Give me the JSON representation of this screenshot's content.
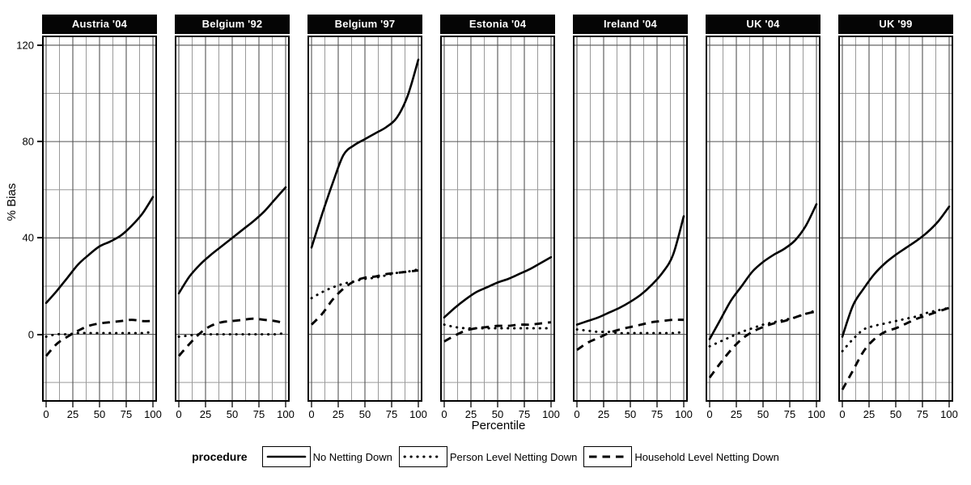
{
  "chart_data": {
    "type": "line",
    "xlabel": "Percentile",
    "ylabel": "% Bias",
    "x_ticks": [
      "0",
      "25",
      "50",
      "75",
      "100"
    ],
    "x_tick_values": [
      0,
      25,
      50,
      75,
      100
    ],
    "x_minor_values": [
      12.5,
      37.5,
      62.5,
      87.5
    ],
    "y_ticks": [
      "120",
      "80",
      "40",
      "0"
    ],
    "y_tick_values": [
      120,
      80,
      40,
      0
    ],
    "y_minor_values": [
      -20,
      20,
      60,
      100
    ],
    "xlim": [
      0,
      100
    ],
    "ylim": [
      -28,
      124
    ],
    "grid": "on",
    "line_color": "#000000",
    "grid_major_color": "#545454",
    "grid_minor_color": "#9a9a9a",
    "strip_bg_color": "#050505",
    "strip_text_color": "#ffffff",
    "legend": {
      "title": "procedure",
      "position": "bottom",
      "entries": [
        {
          "style": "solid",
          "label": "No Netting Down"
        },
        {
          "style": "dotted",
          "label": "Person Level Netting Down"
        },
        {
          "style": "dashed",
          "label": "Household Level Netting Down"
        }
      ]
    },
    "x": [
      0,
      10,
      20,
      30,
      40,
      50,
      60,
      70,
      80,
      90,
      100
    ],
    "facets": [
      {
        "title": "Austria '04",
        "series": {
          "solid": [
            13,
            18,
            23.5,
            29,
            33,
            36.5,
            38.5,
            41,
            45,
            50,
            57
          ],
          "dotted": [
            -1,
            0,
            0,
            0.5,
            0.5,
            0.5,
            0.5,
            0.5,
            0.5,
            0.5,
            1
          ],
          "dashed": [
            -9,
            -4,
            -1,
            1.5,
            3.5,
            4.5,
            5,
            5.5,
            6,
            5.5,
            5.5
          ]
        }
      },
      {
        "title": "Belgium '92",
        "series": {
          "solid": [
            17,
            24,
            29,
            33,
            36.5,
            40,
            43.5,
            47,
            51,
            56,
            61
          ],
          "dotted": [
            -1,
            -0.5,
            0,
            0,
            0,
            0,
            0,
            0,
            0,
            0,
            0.5
          ],
          "dashed": [
            -9,
            -4,
            0.5,
            3.5,
            5,
            5.5,
            6,
            6.5,
            6,
            5.5,
            4.5
          ]
        }
      },
      {
        "title": "Belgium '97",
        "series": {
          "solid": [
            36,
            50,
            63,
            74.5,
            78.5,
            81,
            83.5,
            86,
            90,
            99,
            114
          ],
          "dotted": [
            15,
            17.5,
            19.5,
            21,
            22,
            23,
            23.5,
            24.5,
            25.5,
            26,
            27
          ],
          "dashed": [
            4,
            8.5,
            14.5,
            19,
            22,
            23.5,
            24,
            25,
            25.5,
            26,
            26.5
          ]
        }
      },
      {
        "title": "Estonia '04",
        "series": {
          "solid": [
            7,
            11,
            14.5,
            17.5,
            19.5,
            21.5,
            23,
            25,
            27,
            29.5,
            32
          ],
          "dotted": [
            4,
            3,
            2.5,
            2.5,
            2.5,
            2.5,
            2.5,
            2.5,
            2.5,
            2.5,
            2.5
          ],
          "dashed": [
            -3,
            -0.5,
            1.5,
            2.5,
            3,
            3.5,
            3.5,
            4,
            4,
            4.5,
            5
          ]
        }
      },
      {
        "title": "Ireland '04",
        "series": {
          "solid": [
            4,
            5.5,
            7,
            9,
            11,
            13.5,
            16.5,
            20.5,
            25.5,
            33,
            49
          ],
          "dotted": [
            2,
            1.5,
            1,
            1,
            0.5,
            0.5,
            0.5,
            0.5,
            0.5,
            0.5,
            1
          ],
          "dashed": [
            -6.5,
            -3.5,
            -1.5,
            0.5,
            2,
            3,
            4,
            5,
            5.5,
            6,
            6
          ]
        }
      },
      {
        "title": "UK '04",
        "series": {
          "solid": [
            -2,
            6,
            14,
            20,
            26,
            30,
            33,
            35.5,
            39,
            45,
            54
          ],
          "dotted": [
            -5,
            -3,
            -1,
            1,
            2.5,
            4,
            5,
            6,
            7,
            8.5,
            10
          ],
          "dashed": [
            -18,
            -12,
            -6.5,
            -2,
            1,
            3,
            4.5,
            5.5,
            7,
            8.5,
            9.5
          ]
        }
      },
      {
        "title": "UK '99",
        "series": {
          "solid": [
            -1,
            12,
            19,
            25,
            29.5,
            33,
            36,
            39,
            42.5,
            47,
            53
          ],
          "dotted": [
            -7,
            -2,
            2,
            3.5,
            4.5,
            5.5,
            6.5,
            7.5,
            9,
            10,
            11
          ],
          "dashed": [
            -23,
            -15,
            -7,
            -2,
            1,
            2.5,
            4.5,
            6.5,
            8,
            9.5,
            11
          ]
        }
      }
    ]
  }
}
